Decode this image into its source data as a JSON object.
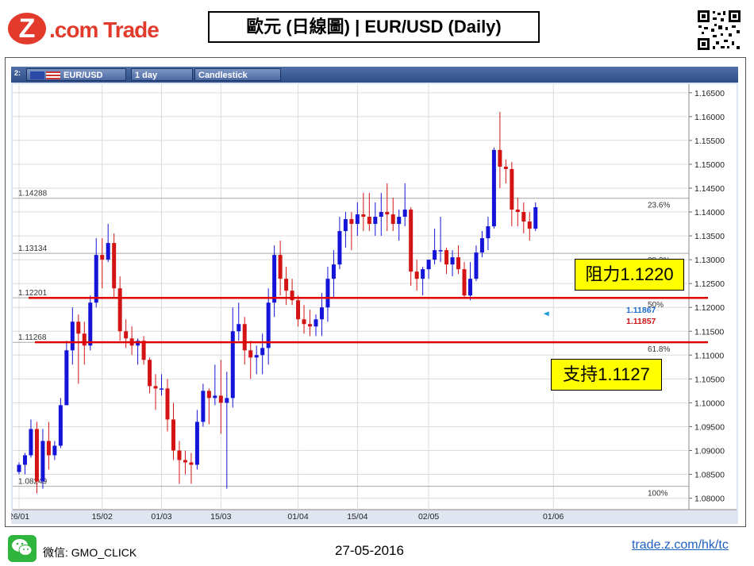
{
  "header": {
    "logo_z": "Z",
    "logo_text": ".com Trade",
    "title": "歐元 (日線圖) | EUR/USD  (Daily)"
  },
  "toolbar": {
    "index": "2:",
    "symbol": "EUR/USD",
    "interval": "1 day",
    "chart_type": "Candlestick"
  },
  "annotations": {
    "resistance": "阻力1.1220",
    "support": "支持1.1127"
  },
  "footer": {
    "wechat_label": "WeChat",
    "wechat_id": "微信: GMO_CLICK",
    "date": "27-05-2016",
    "link": "trade.z.com/hk/tc"
  },
  "colors": {
    "up": "#1414d8",
    "down": "#d41414",
    "level_line": "#e00000",
    "fib_line": "#a8a8a8",
    "grid": "#dcdcdc",
    "toolbar": "#2f4d86",
    "box": "#ffff00"
  },
  "chart_data": {
    "type": "candlestick",
    "title": "EUR/USD",
    "interval": "1 day",
    "ylim": [
      1.0776,
      1.1668
    ],
    "y_ticks": [
      "1.16500",
      "1.16000",
      "1.15500",
      "1.15000",
      "1.14500",
      "1.14000",
      "1.13500",
      "1.13000",
      "1.12500",
      "1.12000",
      "1.11500",
      "1.11000",
      "1.10500",
      "1.10000",
      "1.09500",
      "1.09000",
      "1.08500",
      "1.08000"
    ],
    "x_ticks": [
      {
        "label": "26/01",
        "index": 0
      },
      {
        "label": "15/02",
        "index": 14
      },
      {
        "label": "01/03",
        "index": 24
      },
      {
        "label": "15/03",
        "index": 34
      },
      {
        "label": "01/04",
        "index": 47
      },
      {
        "label": "15/04",
        "index": 57
      },
      {
        "label": "02/05",
        "index": 69
      },
      {
        "label": "01/06",
        "index": 90
      }
    ],
    "fib_levels": [
      {
        "value": 1.14288,
        "label": "1.14288",
        "pct": "23.6%"
      },
      {
        "value": 1.13134,
        "label": "1.13134",
        "pct": "38.2%"
      },
      {
        "value": 1.12201,
        "label": "1.12201",
        "pct": "50%"
      },
      {
        "value": 1.11268,
        "label": "1.11268",
        "pct": "61.8%"
      },
      {
        "value": 1.08249,
        "label": "1.08249",
        "pct": "100%"
      }
    ],
    "price_labels": [
      {
        "value": 1.11867,
        "label": "1.11867",
        "color": "#1e6fd0"
      },
      {
        "value": 1.11857,
        "label": "1.11857",
        "color": "#d41414"
      }
    ],
    "levels": [
      {
        "name": "resistance",
        "value": 1.122
      },
      {
        "name": "support",
        "value": 1.1127
      }
    ],
    "candles": [
      [
        1.0855,
        1.0875,
        1.085,
        1.087
      ],
      [
        1.087,
        1.0895,
        1.085,
        1.089
      ],
      [
        1.089,
        1.0965,
        1.0885,
        1.0945
      ],
      [
        1.0945,
        1.096,
        1.081,
        1.0835
      ],
      [
        1.0835,
        1.0945,
        1.082,
        1.092
      ],
      [
        1.092,
        1.096,
        1.086,
        1.089
      ],
      [
        1.089,
        1.092,
        1.088,
        1.091
      ],
      [
        1.091,
        1.101,
        1.0905,
        1.0995
      ],
      [
        1.0995,
        1.113,
        1.0995,
        1.111
      ],
      [
        1.111,
        1.12,
        1.108,
        1.117
      ],
      [
        1.117,
        1.1185,
        1.104,
        1.1145
      ],
      [
        1.1145,
        1.117,
        1.108,
        1.112
      ],
      [
        1.112,
        1.1225,
        1.111,
        1.121
      ],
      [
        1.121,
        1.1345,
        1.12,
        1.131
      ],
      [
        1.131,
        1.1345,
        1.124,
        1.13
      ],
      [
        1.13,
        1.1375,
        1.1295,
        1.1335
      ],
      [
        1.1335,
        1.1355,
        1.122,
        1.124
      ],
      [
        1.124,
        1.1265,
        1.113,
        1.115
      ],
      [
        1.115,
        1.1175,
        1.1115,
        1.1135
      ],
      [
        1.1135,
        1.116,
        1.11,
        1.112
      ],
      [
        1.112,
        1.1135,
        1.108,
        1.113
      ],
      [
        1.113,
        1.114,
        1.108,
        1.109
      ],
      [
        1.109,
        1.1095,
        1.102,
        1.1035
      ],
      [
        1.1035,
        1.106,
        1.0985,
        1.103
      ],
      [
        1.103,
        1.106,
        1.1015,
        1.103
      ],
      [
        1.103,
        1.105,
        1.094,
        1.0965
      ],
      [
        1.0965,
        1.1,
        1.088,
        1.09
      ],
      [
        1.09,
        1.092,
        1.083,
        1.088
      ],
      [
        1.088,
        1.09,
        1.085,
        1.0875
      ],
      [
        1.0875,
        1.0895,
        1.083,
        1.087
      ],
      [
        1.087,
        1.0985,
        1.086,
        1.096
      ],
      [
        1.096,
        1.104,
        1.095,
        1.1025
      ],
      [
        1.1025,
        1.103,
        1.0955,
        1.101
      ],
      [
        1.101,
        1.108,
        1.0995,
        1.1015
      ],
      [
        1.1015,
        1.109,
        1.0935,
        1.1
      ],
      [
        1.1,
        1.1065,
        1.082,
        1.101
      ],
      [
        1.101,
        1.12,
        1.099,
        1.115
      ],
      [
        1.115,
        1.121,
        1.113,
        1.1165
      ],
      [
        1.1165,
        1.118,
        1.108,
        1.111
      ],
      [
        1.111,
        1.113,
        1.105,
        1.1095
      ],
      [
        1.1095,
        1.112,
        1.106,
        1.11
      ],
      [
        1.11,
        1.1145,
        1.106,
        1.1115
      ],
      [
        1.1115,
        1.124,
        1.108,
        1.121
      ],
      [
        1.121,
        1.133,
        1.118,
        1.131
      ],
      [
        1.131,
        1.134,
        1.1225,
        1.126
      ],
      [
        1.126,
        1.1285,
        1.1205,
        1.1235
      ],
      [
        1.1235,
        1.126,
        1.1205,
        1.1215
      ],
      [
        1.1215,
        1.1225,
        1.116,
        1.1175
      ],
      [
        1.1175,
        1.1205,
        1.1145,
        1.1165
      ],
      [
        1.1165,
        1.1195,
        1.114,
        1.116
      ],
      [
        1.116,
        1.1185,
        1.114,
        1.1175
      ],
      [
        1.1175,
        1.123,
        1.114,
        1.12
      ],
      [
        1.12,
        1.1285,
        1.117,
        1.126
      ],
      [
        1.126,
        1.132,
        1.122,
        1.129
      ],
      [
        1.129,
        1.139,
        1.128,
        1.136
      ],
      [
        1.136,
        1.14,
        1.1325,
        1.1385
      ],
      [
        1.1385,
        1.14,
        1.132,
        1.1375
      ],
      [
        1.1375,
        1.142,
        1.135,
        1.1395
      ],
      [
        1.1395,
        1.144,
        1.136,
        1.139
      ],
      [
        1.139,
        1.144,
        1.136,
        1.1375
      ],
      [
        1.1375,
        1.142,
        1.135,
        1.139
      ],
      [
        1.139,
        1.144,
        1.135,
        1.14
      ],
      [
        1.14,
        1.146,
        1.136,
        1.1395
      ],
      [
        1.1395,
        1.143,
        1.136,
        1.1375
      ],
      [
        1.1375,
        1.1405,
        1.134,
        1.139
      ],
      [
        1.139,
        1.146,
        1.137,
        1.1405
      ],
      [
        1.1405,
        1.141,
        1.1245,
        1.1275
      ],
      [
        1.1275,
        1.13,
        1.1235,
        1.126
      ],
      [
        1.126,
        1.1285,
        1.1225,
        1.128
      ],
      [
        1.128,
        1.13,
        1.126,
        1.13
      ],
      [
        1.13,
        1.1365,
        1.129,
        1.132
      ],
      [
        1.132,
        1.139,
        1.1295,
        1.132
      ],
      [
        1.132,
        1.1325,
        1.127,
        1.129
      ],
      [
        1.129,
        1.132,
        1.1265,
        1.1305
      ],
      [
        1.1305,
        1.133,
        1.127,
        1.128
      ],
      [
        1.128,
        1.1295,
        1.122,
        1.1225
      ],
      [
        1.1225,
        1.1295,
        1.1215,
        1.126
      ],
      [
        1.126,
        1.133,
        1.1255,
        1.1315
      ],
      [
        1.1315,
        1.136,
        1.1305,
        1.1345
      ],
      [
        1.1345,
        1.139,
        1.132,
        1.137
      ],
      [
        1.137,
        1.1535,
        1.1365,
        1.153
      ],
      [
        1.153,
        1.161,
        1.145,
        1.1495
      ],
      [
        1.1495,
        1.151,
        1.146,
        1.149
      ],
      [
        1.149,
        1.1505,
        1.137,
        1.1405
      ],
      [
        1.1405,
        1.143,
        1.137,
        1.14
      ],
      [
        1.14,
        1.142,
        1.1355,
        1.138
      ],
      [
        1.138,
        1.14,
        1.134,
        1.1365
      ],
      [
        1.1365,
        1.142,
        1.136,
        1.141
      ]
    ]
  }
}
